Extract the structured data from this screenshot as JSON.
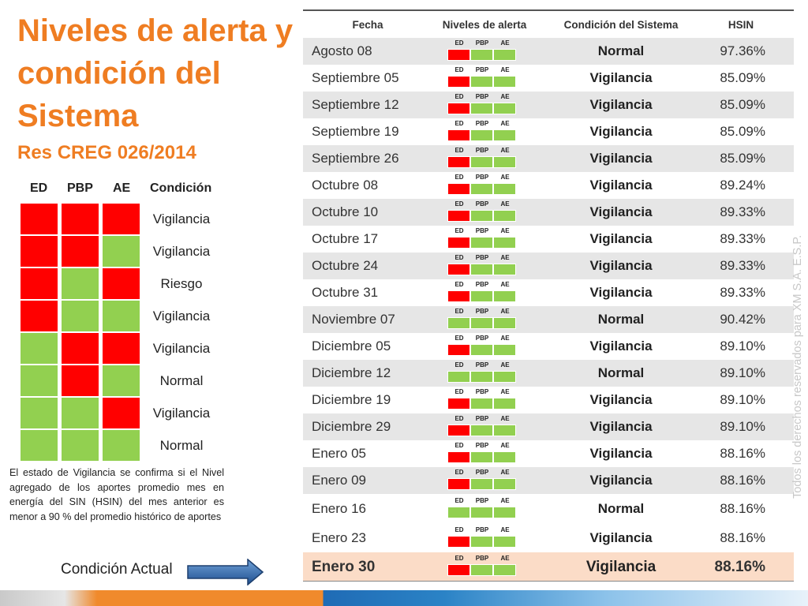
{
  "title": "Niveles de alerta y condición del Sistema",
  "subtitle": "Res CREG 026/2014",
  "colors": {
    "red": "#ff0000",
    "green": "#92d050",
    "accent": "#ef7d22",
    "shade": "#e6e6e6",
    "current": "#fbdcc7"
  },
  "legend": {
    "headers": [
      "ED",
      "PBP",
      "AE",
      "Condición"
    ],
    "rows": [
      {
        "ed": "red",
        "pbp": "red",
        "ae": "red",
        "condition": "Vigilancia"
      },
      {
        "ed": "red",
        "pbp": "red",
        "ae": "green",
        "condition": "Vigilancia"
      },
      {
        "ed": "red",
        "pbp": "green",
        "ae": "red",
        "condition": "Riesgo"
      },
      {
        "ed": "red",
        "pbp": "green",
        "ae": "green",
        "condition": "Vigilancia"
      },
      {
        "ed": "green",
        "pbp": "red",
        "ae": "red",
        "condition": "Vigilancia"
      },
      {
        "ed": "green",
        "pbp": "red",
        "ae": "green",
        "condition": "Normal"
      },
      {
        "ed": "green",
        "pbp": "green",
        "ae": "red",
        "condition": "Vigilancia"
      },
      {
        "ed": "green",
        "pbp": "green",
        "ae": "green",
        "condition": "Normal"
      }
    ]
  },
  "note": "El estado de Vigilancia se confirma si el Nivel agregado de los aportes promedio mes en energía del SIN (HSIN) del mes anterior es menor a  90 % del promedio histórico de aportes",
  "current_label": "Condición Actual",
  "table": {
    "headers": {
      "date": "Fecha",
      "levels": "Niveles de alerta",
      "condition": "Condición del Sistema",
      "hsin": "HSIN"
    },
    "mini_labels": [
      "ED",
      "PBP",
      "AE"
    ],
    "rows": [
      {
        "date": "Agosto 08",
        "ed": "red",
        "pbp": "green",
        "ae": "green",
        "condition": "Normal",
        "hsin": "97.36%"
      },
      {
        "date": "Septiembre 05",
        "ed": "red",
        "pbp": "green",
        "ae": "green",
        "condition": "Vigilancia",
        "hsin": "85.09%"
      },
      {
        "date": "Septiembre 12",
        "ed": "red",
        "pbp": "green",
        "ae": "green",
        "condition": "Vigilancia",
        "hsin": "85.09%"
      },
      {
        "date": "Septiembre 19",
        "ed": "red",
        "pbp": "green",
        "ae": "green",
        "condition": "Vigilancia",
        "hsin": "85.09%"
      },
      {
        "date": "Septiembre 26",
        "ed": "red",
        "pbp": "green",
        "ae": "green",
        "condition": "Vigilancia",
        "hsin": "85.09%"
      },
      {
        "date": "Octubre 08",
        "ed": "red",
        "pbp": "green",
        "ae": "green",
        "condition": "Vigilancia",
        "hsin": "89.24%"
      },
      {
        "date": "Octubre 10",
        "ed": "red",
        "pbp": "green",
        "ae": "green",
        "condition": "Vigilancia",
        "hsin": "89.33%"
      },
      {
        "date": "Octubre 17",
        "ed": "red",
        "pbp": "green",
        "ae": "green",
        "condition": "Vigilancia",
        "hsin": "89.33%"
      },
      {
        "date": "Octubre 24",
        "ed": "red",
        "pbp": "green",
        "ae": "green",
        "condition": "Vigilancia",
        "hsin": "89.33%"
      },
      {
        "date": "Octubre 31",
        "ed": "red",
        "pbp": "green",
        "ae": "green",
        "condition": "Vigilancia",
        "hsin": "89.33%"
      },
      {
        "date": "Noviembre 07",
        "ed": "green",
        "pbp": "green",
        "ae": "green",
        "condition": "Normal",
        "hsin": "90.42%"
      },
      {
        "date": "Diciembre 05",
        "ed": "red",
        "pbp": "green",
        "ae": "green",
        "condition": "Vigilancia",
        "hsin": "89.10%"
      },
      {
        "date": "Diciembre 12",
        "ed": "green",
        "pbp": "green",
        "ae": "green",
        "condition": "Normal",
        "hsin": "89.10%"
      },
      {
        "date": "Diciembre 19",
        "ed": "red",
        "pbp": "green",
        "ae": "green",
        "condition": "Vigilancia",
        "hsin": "89.10%"
      },
      {
        "date": "Diciembre 29",
        "ed": "red",
        "pbp": "green",
        "ae": "green",
        "condition": "Vigilancia",
        "hsin": "89.10%"
      },
      {
        "date": "Enero 05",
        "ed": "red",
        "pbp": "green",
        "ae": "green",
        "condition": "Vigilancia",
        "hsin": "88.16%"
      },
      {
        "date": "Enero 09",
        "ed": "red",
        "pbp": "green",
        "ae": "green",
        "condition": "Vigilancia",
        "hsin": "88.16%"
      },
      {
        "date": "Enero 16",
        "ed": "green",
        "pbp": "green",
        "ae": "green",
        "condition": "Normal",
        "hsin": "88.16%"
      },
      {
        "date": "Enero 23",
        "ed": "red",
        "pbp": "green",
        "ae": "green",
        "condition": "Vigilancia",
        "hsin": "88.16%"
      },
      {
        "date": "Enero 30",
        "ed": "red",
        "pbp": "green",
        "ae": "green",
        "condition": "Vigilancia",
        "hsin": "88.16%"
      }
    ]
  },
  "watermark": "Todos los derechos reservados para XM S.A. E.S.P."
}
